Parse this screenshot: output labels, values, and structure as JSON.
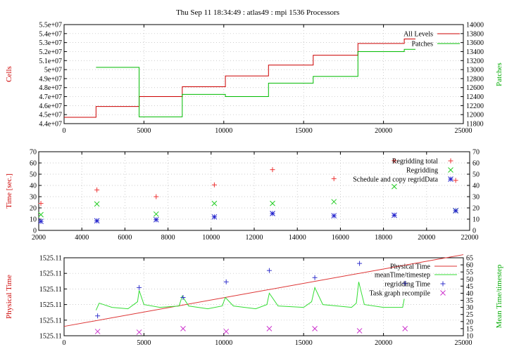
{
  "title": "Thu Sep 11 18:34:49 : atlas49 : mpi 1536 Processors",
  "chart_data": [
    {
      "type": "line",
      "ylabel": "Cells",
      "y2label": "Patches",
      "xlim": [
        0,
        25000
      ],
      "ylim": [
        44000000,
        55000000
      ],
      "y2lim": [
        11800,
        14000
      ],
      "xticks": [
        0,
        5000,
        10000,
        15000,
        20000,
        25000
      ],
      "xtick_labels": [
        "0",
        "5000",
        "10000",
        "15000",
        "20000",
        "25000"
      ],
      "yticks": [
        44000000,
        45000000,
        46000000,
        47000000,
        48000000,
        49000000,
        50000000,
        51000000,
        52000000,
        53000000,
        54000000,
        55000000
      ],
      "ytick_labels": [
        "4.4e+07",
        "4.5e+07",
        "4.6e+07",
        "4.7e+07",
        "4.8e+07",
        "4.9e+07",
        "5e+07",
        "5.1e+07",
        "5.2e+07",
        "5.3e+07",
        "5.4e+07",
        "5.5e+07"
      ],
      "y2ticks": [
        11800,
        12000,
        12200,
        12400,
        12600,
        12800,
        13000,
        13200,
        13400,
        13600,
        13800,
        14000
      ],
      "y2tick_labels": [
        "11800",
        "12000",
        "12200",
        "12400",
        "12600",
        "12800",
        "13000",
        "13200",
        "13400",
        "13600",
        "13800",
        "14000"
      ],
      "grid": true,
      "legend_position": "top-right",
      "series": [
        {
          "name": "All Levels",
          "axis": "left",
          "color": "#cc0000",
          "step": true,
          "x": [
            0,
            2000,
            4700,
            7400,
            10100,
            12800,
            15600,
            18400,
            21300
          ],
          "y": [
            44700000,
            45900000,
            47000000,
            48100000,
            49300000,
            50500000,
            51600000,
            52900000,
            53400000
          ]
        },
        {
          "name": "Patches",
          "axis": "right",
          "color": "#00bb00",
          "step": true,
          "x": [
            2000,
            4700,
            7400,
            10100,
            12800,
            15600,
            18400,
            21300
          ],
          "y": [
            13050,
            11950,
            12450,
            12400,
            12700,
            12850,
            13400,
            13450
          ]
        }
      ]
    },
    {
      "type": "scatter",
      "ylabel": "Time [sec.]",
      "xlim": [
        2000,
        22000
      ],
      "ylim": [
        0,
        70
      ],
      "y2lim": [
        0,
        70
      ],
      "xticks": [
        2000,
        4000,
        6000,
        8000,
        10000,
        12000,
        14000,
        16000,
        18000,
        20000,
        22000
      ],
      "xtick_labels": [
        "2000",
        "4000",
        "6000",
        "8000",
        "10000",
        "12000",
        "14000",
        "16000",
        "18000",
        "20000",
        "22000"
      ],
      "yticks": [
        0,
        10,
        20,
        30,
        40,
        50,
        60,
        70
      ],
      "ytick_labels": [
        "0",
        "10",
        "20",
        "30",
        "40",
        "50",
        "60",
        "70"
      ],
      "y2tick_labels": [
        "0",
        "10",
        "20",
        "30",
        "40",
        "50",
        "60",
        "70"
      ],
      "grid": true,
      "legend_position": "top-right",
      "series": [
        {
          "name": "Regridding total",
          "marker": "plus",
          "color": "#ee3333",
          "x": [
            2100,
            4700,
            7450,
            10150,
            12850,
            15700,
            18500,
            21350
          ],
          "y": [
            24,
            36,
            30,
            40.5,
            54,
            46,
            62,
            44.5
          ]
        },
        {
          "name": "Regridding",
          "marker": "x",
          "color": "#22cc22",
          "x": [
            2100,
            4700,
            7450,
            10150,
            12850,
            15700,
            18500,
            21350
          ],
          "y": [
            14,
            23.5,
            14.5,
            24,
            24,
            25.5,
            39,
            17.5
          ]
        },
        {
          "name": "Schedule and copy regridData",
          "marker": "star",
          "color": "#2222cc",
          "x": [
            2100,
            4700,
            7450,
            10150,
            12850,
            15700,
            18500,
            21350
          ],
          "y": [
            8,
            8.5,
            9.5,
            12,
            15,
            13,
            13.5,
            17.5
          ]
        }
      ]
    },
    {
      "type": "line",
      "ylabel": "Physical Time",
      "y2label": "Mean Time/timestep",
      "xlim": [
        0,
        25000
      ],
      "ylim": [
        0,
        5
      ],
      "y2lim": [
        10,
        65
      ],
      "xticks": [
        0,
        5000,
        10000,
        15000,
        20000,
        25000
      ],
      "xtick_labels": [
        "0",
        "5000",
        "10000",
        "15000",
        "20000",
        "25000"
      ],
      "yticks": [
        0,
        1,
        2,
        3,
        4,
        5
      ],
      "ytick_labels": [
        "1525.11",
        "1525.11",
        "1525.11",
        "1525.11",
        "1525.11",
        "1525.11"
      ],
      "y2ticks": [
        10,
        15,
        20,
        25,
        30,
        35,
        40,
        45,
        50,
        55,
        60,
        65
      ],
      "y2tick_labels": [
        "10",
        "15",
        "20",
        "25",
        "30",
        "35",
        "40",
        "45",
        "50",
        "55",
        "60",
        "65"
      ],
      "grid": true,
      "legend_position": "top-right",
      "series": [
        {
          "name": "Physical Time",
          "axis": "left",
          "color": "#dd3333",
          "x": [
            0,
            25000
          ],
          "y": [
            0.6,
            5.2
          ]
        },
        {
          "name": "meanTime/timestep",
          "axis": "right",
          "color": "#33dd33",
          "x": [
            2000,
            2200,
            3000,
            4000,
            4600,
            4700,
            5000,
            6000,
            7200,
            7400,
            7800,
            9000,
            9900,
            10100,
            10600,
            12000,
            12700,
            12850,
            13400,
            15000,
            15500,
            15700,
            16200,
            18000,
            18300,
            18450,
            18800,
            20000,
            21000,
            21200,
            21300
          ],
          "y": [
            28,
            33,
            30,
            29,
            34,
            42,
            32,
            30,
            31,
            38,
            31,
            29,
            31,
            37,
            31,
            29,
            32,
            40,
            31,
            30,
            34,
            44,
            32,
            30,
            33,
            48,
            32,
            30,
            30,
            30,
            36
          ]
        },
        {
          "name": "regridding Time",
          "axis": "right",
          "marker": "plus",
          "color": "#3333cc",
          "x": [
            2100,
            4700,
            7450,
            10150,
            12850,
            15700,
            18500,
            21350
          ],
          "y": [
            24,
            44,
            37,
            48,
            56,
            51,
            61,
            47
          ]
        },
        {
          "name": "Task graph recompile",
          "axis": "right",
          "marker": "x",
          "color": "#cc33cc",
          "x": [
            2100,
            4700,
            7450,
            10150,
            12850,
            15700,
            18500,
            21350
          ],
          "y": [
            13,
            12.5,
            15,
            13,
            15,
            15,
            13.5,
            15
          ]
        }
      ]
    }
  ]
}
